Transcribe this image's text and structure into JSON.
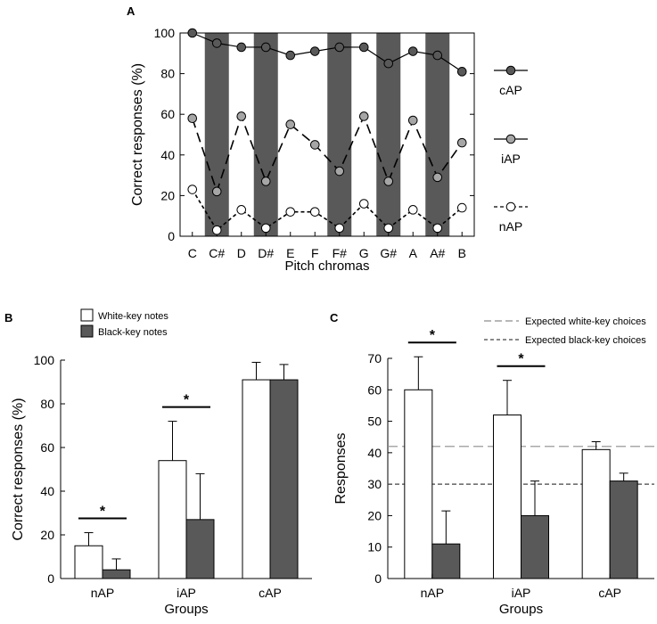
{
  "panel_labels": {
    "a": "A",
    "b": "B",
    "c": "C"
  },
  "colors": {
    "dark": "#595959",
    "mid": "#a6a6a6",
    "light": "#ffffff",
    "line": "#000000",
    "dash": "#8c8c8c"
  },
  "chart_data": [
    {
      "id": "A",
      "type": "line",
      "xlabel": "Pitch chromas",
      "ylabel": "Correct responses (%)",
      "ylim": [
        0,
        100
      ],
      "yticks": [
        0,
        20,
        40,
        60,
        80,
        100
      ],
      "categories": [
        "C",
        "C#",
        "D",
        "D#",
        "E",
        "F",
        "F#",
        "G",
        "G#",
        "A",
        "A#",
        "B"
      ],
      "shaded_categories": [
        "C#",
        "D#",
        "F#",
        "G#",
        "A#"
      ],
      "series": [
        {
          "name": "cAP",
          "style": "solid",
          "marker": "dark",
          "values": [
            100,
            95,
            93,
            93,
            89,
            91,
            93,
            93,
            85,
            91,
            89,
            81
          ]
        },
        {
          "name": "iAP",
          "style": "dashed",
          "marker": "mid",
          "values": [
            58,
            22,
            59,
            27,
            55,
            45,
            32,
            59,
            27,
            57,
            29,
            46
          ]
        },
        {
          "name": "nAP",
          "style": "short-dashed",
          "marker": "light",
          "values": [
            23,
            3,
            13,
            4,
            12,
            12,
            4,
            16,
            4,
            13,
            4,
            14
          ]
        }
      ]
    },
    {
      "id": "B",
      "type": "bar",
      "xlabel": "Groups",
      "ylabel": "Correct responses (%)",
      "ylim": [
        0,
        100
      ],
      "yticks": [
        0,
        20,
        40,
        60,
        80,
        100
      ],
      "categories": [
        "nAP",
        "iAP",
        "cAP"
      ],
      "legend": [
        "White-key notes",
        "Black-key notes"
      ],
      "series": [
        {
          "name": "White-key notes",
          "values": [
            15,
            54,
            91
          ],
          "errors": [
            6,
            18,
            8
          ]
        },
        {
          "name": "Black-key notes",
          "values": [
            4,
            27,
            91
          ],
          "errors": [
            5,
            21,
            7
          ]
        }
      ],
      "significance": [
        {
          "group": "nAP",
          "label": "*"
        },
        {
          "group": "iAP",
          "label": "*"
        }
      ]
    },
    {
      "id": "C",
      "type": "bar",
      "xlabel": "Groups",
      "ylabel": "Responses",
      "ylim": [
        0,
        70
      ],
      "yticks": [
        0,
        10,
        20,
        30,
        40,
        50,
        60,
        70
      ],
      "categories": [
        "nAP",
        "iAP",
        "cAP"
      ],
      "series": [
        {
          "name": "White-key notes",
          "values": [
            60,
            52,
            41
          ],
          "errors": [
            10.5,
            11,
            2.5
          ]
        },
        {
          "name": "Black-key notes",
          "values": [
            11,
            20,
            31
          ],
          "errors": [
            10.5,
            11,
            2.5
          ]
        }
      ],
      "reference_lines": [
        {
          "label": "Expected white-key choices",
          "value": 42,
          "style": "long-dash"
        },
        {
          "label": "Expected black-key choices",
          "value": 30,
          "style": "short-dash"
        }
      ],
      "significance": [
        {
          "group": "nAP",
          "label": "*"
        },
        {
          "group": "iAP",
          "label": "*"
        }
      ]
    }
  ]
}
